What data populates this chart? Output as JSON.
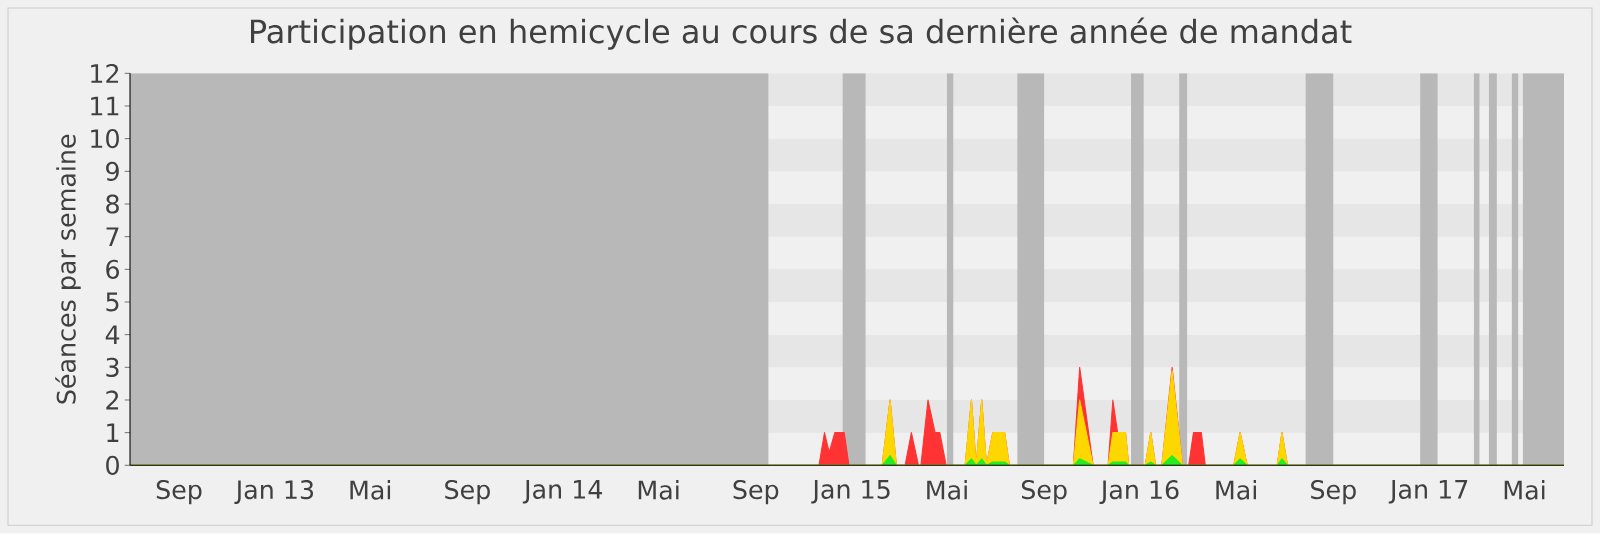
{
  "chart_data": {
    "type": "area",
    "title": "Participation en hemicycle au cours de sa dernière année de mandat",
    "ylabel": "Séances par semaine",
    "xlim": [
      "2012-07-01",
      "2017-06-20"
    ],
    "ylim": [
      0,
      12
    ],
    "yticks": [
      0,
      1,
      2,
      3,
      4,
      5,
      6,
      7,
      8,
      9,
      10,
      11,
      12
    ],
    "xticks": [
      {
        "value": "2012-09-01",
        "label": "Sep"
      },
      {
        "value": "2013-01-01",
        "label": "Jan 13"
      },
      {
        "value": "2013-05-01",
        "label": "Mai"
      },
      {
        "value": "2013-09-01",
        "label": "Sep"
      },
      {
        "value": "2014-01-01",
        "label": "Jan 14"
      },
      {
        "value": "2014-05-01",
        "label": "Mai"
      },
      {
        "value": "2014-09-01",
        "label": "Sep"
      },
      {
        "value": "2015-01-01",
        "label": "Jan 15"
      },
      {
        "value": "2015-05-01",
        "label": "Mai"
      },
      {
        "value": "2015-09-01",
        "label": "Sep"
      },
      {
        "value": "2016-01-01",
        "label": "Jan 16"
      },
      {
        "value": "2016-05-01",
        "label": "Mai"
      },
      {
        "value": "2016-09-01",
        "label": "Sep"
      },
      {
        "value": "2017-01-01",
        "label": "Jan 17"
      },
      {
        "value": "2017-05-01",
        "label": "Mai"
      }
    ],
    "bands": [
      {
        "axis": "y",
        "from": 1,
        "to": 2,
        "color": "#e6e6e6"
      },
      {
        "axis": "y",
        "from": 3,
        "to": 4,
        "color": "#e6e6e6"
      },
      {
        "axis": "y",
        "from": 5,
        "to": 6,
        "color": "#e6e6e6"
      },
      {
        "axis": "y",
        "from": 7,
        "to": 8,
        "color": "#e6e6e6"
      },
      {
        "axis": "y",
        "from": 9,
        "to": 10,
        "color": "#e6e6e6"
      },
      {
        "axis": "y",
        "from": 11,
        "to": 12,
        "color": "#e6e6e6"
      },
      {
        "axis": "x",
        "from": "2012-07-01",
        "to": "2014-09-17",
        "color": "#b8b8b8"
      },
      {
        "axis": "x",
        "from": "2014-12-20",
        "to": "2015-01-18",
        "color": "#b8b8b8"
      },
      {
        "axis": "x",
        "from": "2015-05-01",
        "to": "2015-05-09",
        "color": "#b8b8b8"
      },
      {
        "axis": "x",
        "from": "2015-07-29",
        "to": "2015-09-01",
        "color": "#b8b8b8"
      },
      {
        "axis": "x",
        "from": "2015-12-20",
        "to": "2016-01-05",
        "color": "#b8b8b8"
      },
      {
        "axis": "x",
        "from": "2016-02-19",
        "to": "2016-02-29",
        "color": "#b8b8b8"
      },
      {
        "axis": "x",
        "from": "2016-07-28",
        "to": "2016-09-01",
        "color": "#b8b8b8"
      },
      {
        "axis": "x",
        "from": "2016-12-20",
        "to": "2017-01-11",
        "color": "#b8b8b8"
      },
      {
        "axis": "x",
        "from": "2017-02-26",
        "to": "2017-03-05",
        "color": "#b8b8b8"
      },
      {
        "axis": "x",
        "from": "2017-03-17",
        "to": "2017-03-27",
        "color": "#b8b8b8"
      },
      {
        "axis": "x",
        "from": "2017-04-15",
        "to": "2017-04-23",
        "color": "#b8b8b8"
      },
      {
        "axis": "x",
        "from": "2017-04-29",
        "to": "2017-06-20",
        "color": "#b8b8b8"
      }
    ],
    "x": [
      "2012-07-01",
      "2014-11-20",
      "2014-11-27",
      "2014-12-03",
      "2014-12-10",
      "2014-12-22",
      "2014-12-28",
      "2015-02-08",
      "2015-02-18",
      "2015-02-26",
      "2015-03-09",
      "2015-03-17",
      "2015-03-26",
      "2015-03-29",
      "2015-04-07",
      "2015-04-16",
      "2015-04-22",
      "2015-04-30",
      "2015-05-24",
      "2015-06-01",
      "2015-06-07",
      "2015-06-14",
      "2015-06-20",
      "2015-06-28",
      "2015-07-13",
      "2015-07-19",
      "2015-10-08",
      "2015-10-16",
      "2015-11-02",
      "2015-11-21",
      "2015-11-27",
      "2015-12-03",
      "2015-12-13",
      "2015-12-17",
      "2016-01-07",
      "2016-01-14",
      "2016-01-20",
      "2016-01-28",
      "2016-02-10",
      "2016-02-23",
      "2016-03-02",
      "2016-03-08",
      "2016-03-18",
      "2016-03-23",
      "2016-04-28",
      "2016-05-06",
      "2016-05-15",
      "2016-06-22",
      "2016-06-28",
      "2016-07-05",
      "2017-06-20"
    ],
    "series": [
      {
        "color": "#ff3333",
        "values": [
          0,
          0,
          1,
          0.4,
          1,
          1,
          0,
          0,
          2,
          0,
          0,
          1,
          0,
          0,
          2,
          1,
          1,
          0,
          0,
          2,
          0,
          2,
          0,
          1,
          1,
          0,
          0,
          3,
          0,
          0,
          2,
          1,
          1,
          0,
          0,
          1,
          0,
          0,
          3,
          0,
          0,
          1,
          1,
          0,
          0,
          1,
          0,
          0,
          1,
          0,
          0
        ]
      },
      {
        "color": "#ffd700",
        "values": [
          0,
          0,
          0,
          0,
          0,
          0,
          0,
          0,
          2,
          0,
          0,
          0,
          0,
          0,
          0,
          0,
          0,
          0,
          0,
          2,
          0,
          2,
          0,
          1,
          1,
          0,
          0,
          2,
          0,
          0,
          1,
          1,
          1,
          0,
          0,
          1,
          0,
          0,
          2.9,
          0,
          0,
          0,
          0,
          0,
          0,
          1,
          0,
          0,
          1,
          0,
          0
        ]
      },
      {
        "color": "#22ee22",
        "values": [
          0,
          0,
          0,
          0,
          0,
          0,
          0,
          0,
          0.3,
          0,
          0,
          0,
          0,
          0,
          0,
          0,
          0,
          0,
          0,
          0.2,
          0,
          0.2,
          0,
          0.1,
          0.1,
          0,
          0,
          0.2,
          0,
          0,
          0.1,
          0.1,
          0.1,
          0,
          0,
          0.1,
          0,
          0,
          0.3,
          0,
          0,
          0,
          0,
          0,
          0,
          0.2,
          0,
          0,
          0.2,
          0,
          0
        ]
      }
    ]
  }
}
